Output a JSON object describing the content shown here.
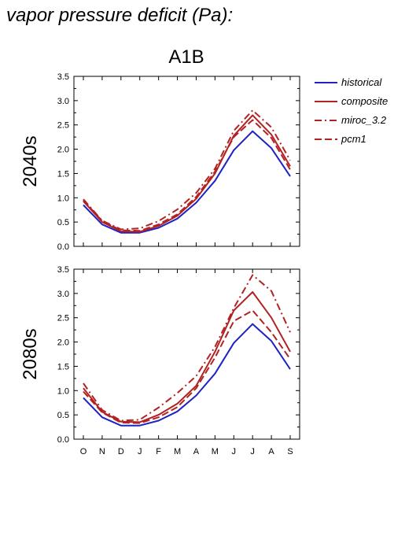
{
  "figure_title": "vapor pressure deficit (Pa):",
  "scenario": "A1B",
  "legend": [
    "historical",
    "composite",
    "miroc_3.2",
    "pcm1"
  ],
  "colors": {
    "historical": "#1f22c4",
    "composite": "#b22222",
    "miroc_3.2": "#b22222",
    "pcm1": "#b22222"
  },
  "chart_data": [
    {
      "type": "line",
      "title": "A1B",
      "ylabel": "2040s",
      "categories": [
        "O",
        "N",
        "D",
        "J",
        "F",
        "M",
        "A",
        "M",
        "J",
        "J",
        "A",
        "S"
      ],
      "yticks": [
        "0.0",
        "0.5",
        "1.0",
        "1.5",
        "2.0",
        "2.5",
        "3.0",
        "3.5"
      ],
      "ylim": [
        0,
        3.5
      ],
      "legend_position": "right",
      "series": [
        {
          "name": "historical",
          "style": "solid",
          "values": [
            0.85,
            0.45,
            0.28,
            0.28,
            0.38,
            0.57,
            0.9,
            1.35,
            1.98,
            2.37,
            2.02,
            1.44
          ]
        },
        {
          "name": "composite",
          "style": "solid",
          "values": [
            0.93,
            0.5,
            0.31,
            0.3,
            0.42,
            0.63,
            0.98,
            1.5,
            2.28,
            2.7,
            2.3,
            1.65
          ]
        },
        {
          "name": "miroc_3.2",
          "style": "dashdot",
          "values": [
            0.97,
            0.53,
            0.35,
            0.37,
            0.52,
            0.76,
            1.1,
            1.6,
            2.38,
            2.8,
            2.45,
            1.77
          ]
        },
        {
          "name": "pcm1",
          "style": "dashed",
          "values": [
            0.95,
            0.52,
            0.33,
            0.32,
            0.45,
            0.66,
            1.02,
            1.54,
            2.25,
            2.6,
            2.23,
            1.58
          ]
        }
      ]
    },
    {
      "type": "line",
      "title": "",
      "ylabel": "2080s",
      "categories": [
        "O",
        "N",
        "D",
        "J",
        "F",
        "M",
        "A",
        "M",
        "J",
        "J",
        "A",
        "S"
      ],
      "yticks": [
        "0.0",
        "0.5",
        "1.0",
        "1.5",
        "2.0",
        "2.5",
        "3.0",
        "3.5"
      ],
      "ylim": [
        0,
        3.5
      ],
      "series": [
        {
          "name": "historical",
          "style": "solid",
          "values": [
            0.85,
            0.45,
            0.28,
            0.28,
            0.38,
            0.57,
            0.9,
            1.35,
            1.98,
            2.37,
            2.02,
            1.44
          ]
        },
        {
          "name": "composite",
          "style": "solid",
          "values": [
            1.05,
            0.56,
            0.36,
            0.35,
            0.5,
            0.73,
            1.1,
            1.8,
            2.65,
            3.03,
            2.5,
            1.8
          ]
        },
        {
          "name": "miroc_3.2",
          "style": "dashdot",
          "values": [
            1.15,
            0.6,
            0.38,
            0.4,
            0.65,
            0.95,
            1.3,
            1.9,
            2.7,
            3.38,
            3.05,
            2.2
          ]
        },
        {
          "name": "pcm1",
          "style": "dashed",
          "values": [
            0.98,
            0.55,
            0.34,
            0.33,
            0.45,
            0.66,
            1.05,
            1.68,
            2.43,
            2.65,
            2.2,
            1.65
          ]
        }
      ]
    }
  ]
}
